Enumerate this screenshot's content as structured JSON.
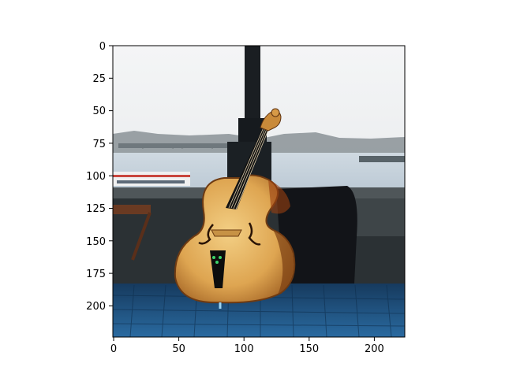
{
  "image": {
    "subject": "upright double bass leaning against a stone bridge parapet beside a lamp post, river and distant bridge in background",
    "palette": {
      "sky": "#eef0f2",
      "water": "#c9d6e0",
      "wood": "#e3b15a",
      "wood_dark": "#8a4f1c",
      "bag": "#121418",
      "cobblestone": "#1f5a8c",
      "lamp_post": "#1a1e22"
    }
  },
  "axes": {
    "x_ticks": [
      "0",
      "50",
      "100",
      "150",
      "200"
    ],
    "y_ticks": [
      "0",
      "25",
      "50",
      "75",
      "100",
      "125",
      "150",
      "175",
      "200"
    ],
    "xlim": [
      0,
      224
    ],
    "ylim": [
      224,
      0
    ]
  }
}
